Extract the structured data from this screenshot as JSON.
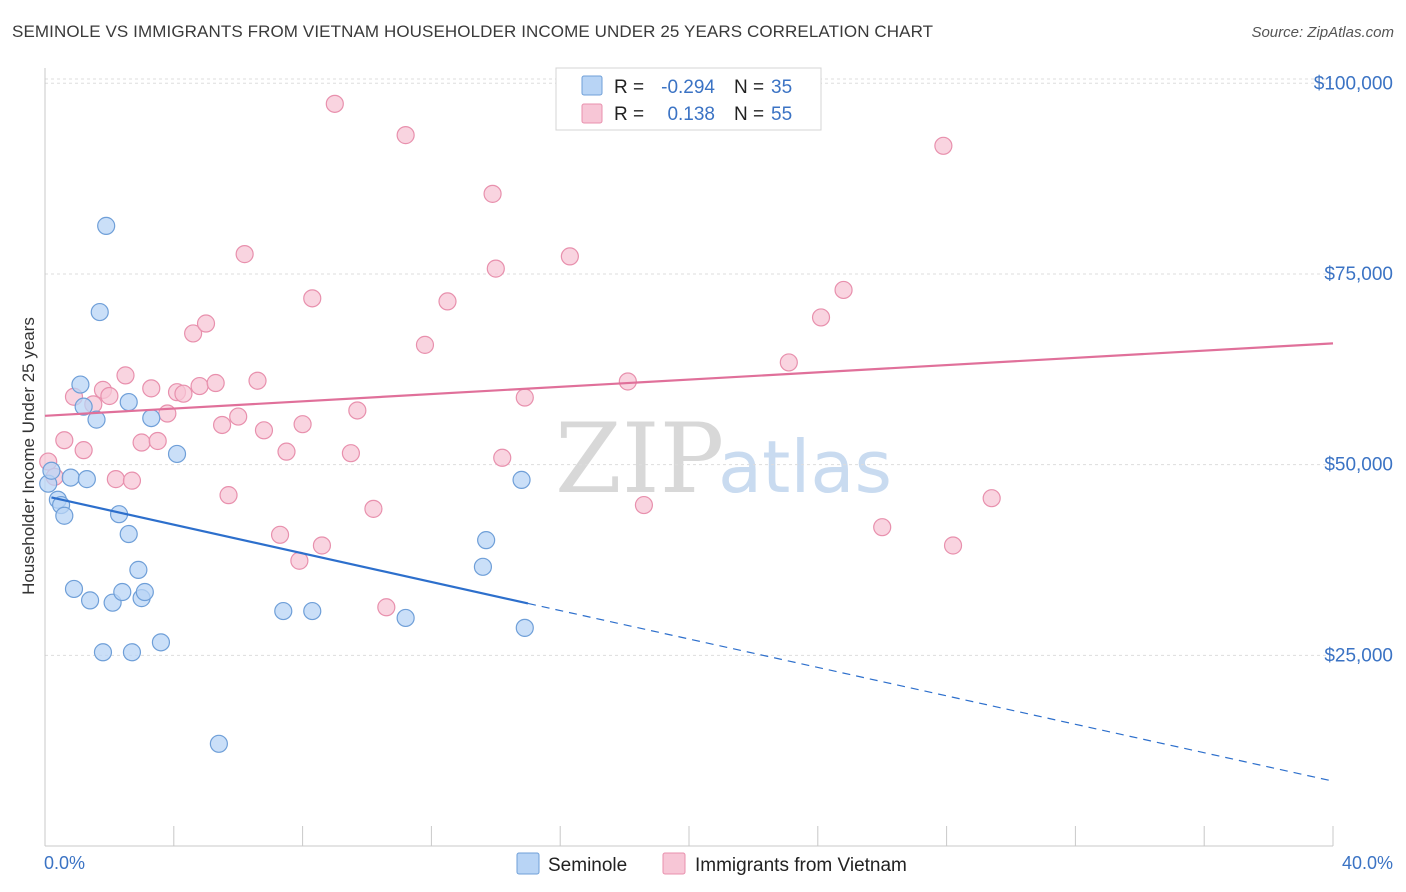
{
  "header": {
    "title": "SEMINOLE VS IMMIGRANTS FROM VIETNAM HOUSEHOLDER INCOME UNDER 25 YEARS CORRELATION CHART",
    "source": "Source: ZipAtlas.com"
  },
  "watermark": {
    "zip": "ZIP",
    "atlas": "atlas"
  },
  "colors": {
    "seminole_fill": "#b8d4f5",
    "seminole_stroke": "#6f9fd8",
    "seminole_line": "#2d6fcc",
    "vietnam_fill": "#f7c6d6",
    "vietnam_stroke": "#e890ad",
    "vietnam_line": "#e0709a",
    "grid": "#dddddd",
    "axis_text": "#3b73c4"
  },
  "legend": {
    "rows": [
      {
        "r_label": "R =",
        "r_value": "-0.294",
        "n_label": "N =",
        "n_value": "35"
      },
      {
        "r_label": "R =",
        "r_value": "0.138",
        "n_label": "N =",
        "n_value": "55"
      }
    ]
  },
  "chart_data": {
    "type": "scatter",
    "title": "SEMINOLE VS IMMIGRANTS FROM VIETNAM HOUSEHOLDER INCOME UNDER 25 YEARS CORRELATION CHART",
    "xlabel": "",
    "ylabel": "Householder Income Under 25 years",
    "xlim": [
      0,
      40
    ],
    "ylim": [
      0,
      102000
    ],
    "x_tick_labels": [
      "0.0%",
      "40.0%"
    ],
    "y_ticks": [
      {
        "value": 25000,
        "label": "$25,000"
      },
      {
        "value": 50000,
        "label": "$50,000"
      },
      {
        "value": 75000,
        "label": "$75,000"
      },
      {
        "value": 100000,
        "label": "$100,000"
      }
    ],
    "series": [
      {
        "name": "Seminole",
        "trend": {
          "start": [
            0.2,
            45700
          ],
          "end": [
            15,
            31800
          ],
          "dashed_to": [
            40,
            8500
          ]
        },
        "points": [
          [
            0.1,
            47500
          ],
          [
            0.2,
            49200
          ],
          [
            0.4,
            45400
          ],
          [
            0.5,
            44700
          ],
          [
            0.6,
            43300
          ],
          [
            0.8,
            48300
          ],
          [
            0.9,
            33700
          ],
          [
            1.1,
            60500
          ],
          [
            1.2,
            57600
          ],
          [
            1.3,
            48100
          ],
          [
            1.4,
            32200
          ],
          [
            1.6,
            55900
          ],
          [
            1.7,
            70000
          ],
          [
            1.8,
            25400
          ],
          [
            1.9,
            81300
          ],
          [
            2.1,
            31900
          ],
          [
            2.3,
            43500
          ],
          [
            2.4,
            33300
          ],
          [
            2.6,
            40900
          ],
          [
            2.6,
            58200
          ],
          [
            2.7,
            25400
          ],
          [
            2.9,
            36200
          ],
          [
            3.0,
            32500
          ],
          [
            3.1,
            33300
          ],
          [
            3.3,
            56100
          ],
          [
            3.6,
            26700
          ],
          [
            4.1,
            51400
          ],
          [
            5.4,
            13400
          ],
          [
            7.4,
            30800
          ],
          [
            8.3,
            30800
          ],
          [
            11.2,
            29900
          ],
          [
            13.6,
            36600
          ],
          [
            13.7,
            40100
          ],
          [
            14.8,
            48000
          ],
          [
            14.9,
            28600
          ]
        ]
      },
      {
        "name": "Immigrants from Vietnam",
        "trend": {
          "start": [
            0,
            56400
          ],
          "end": [
            40,
            65900
          ]
        },
        "points": [
          [
            0.1,
            50400
          ],
          [
            0.3,
            48400
          ],
          [
            0.6,
            53200
          ],
          [
            0.9,
            58900
          ],
          [
            1.2,
            51900
          ],
          [
            1.5,
            57900
          ],
          [
            1.8,
            59800
          ],
          [
            2.0,
            59000
          ],
          [
            2.2,
            48100
          ],
          [
            2.5,
            61700
          ],
          [
            2.7,
            47900
          ],
          [
            3.0,
            52900
          ],
          [
            3.3,
            60000
          ],
          [
            3.5,
            53100
          ],
          [
            3.8,
            56700
          ],
          [
            4.1,
            59500
          ],
          [
            4.3,
            59300
          ],
          [
            4.6,
            67200
          ],
          [
            4.8,
            60300
          ],
          [
            5.0,
            68500
          ],
          [
            5.3,
            60700
          ],
          [
            5.5,
            55200
          ],
          [
            5.7,
            46000
          ],
          [
            6.0,
            56300
          ],
          [
            6.2,
            77600
          ],
          [
            6.6,
            61000
          ],
          [
            6.8,
            54500
          ],
          [
            7.3,
            40800
          ],
          [
            7.5,
            51700
          ],
          [
            7.9,
            37400
          ],
          [
            8.0,
            55300
          ],
          [
            8.3,
            71800
          ],
          [
            8.6,
            39400
          ],
          [
            9.0,
            97300
          ],
          [
            9.5,
            51500
          ],
          [
            9.7,
            57100
          ],
          [
            10.2,
            44200
          ],
          [
            10.6,
            31300
          ],
          [
            11.2,
            93200
          ],
          [
            11.8,
            65700
          ],
          [
            12.5,
            71400
          ],
          [
            13.9,
            85500
          ],
          [
            14.0,
            75700
          ],
          [
            14.2,
            50900
          ],
          [
            14.9,
            58800
          ],
          [
            16.3,
            77300
          ],
          [
            18.1,
            60900
          ],
          [
            18.6,
            44700
          ],
          [
            23.1,
            63400
          ],
          [
            24.1,
            69300
          ],
          [
            24.8,
            72900
          ],
          [
            26.0,
            41800
          ],
          [
            27.9,
            91800
          ],
          [
            28.2,
            39400
          ],
          [
            29.4,
            45600
          ]
        ]
      }
    ],
    "legend_labels": [
      "Seminole",
      "Immigrants from Vietnam"
    ]
  }
}
